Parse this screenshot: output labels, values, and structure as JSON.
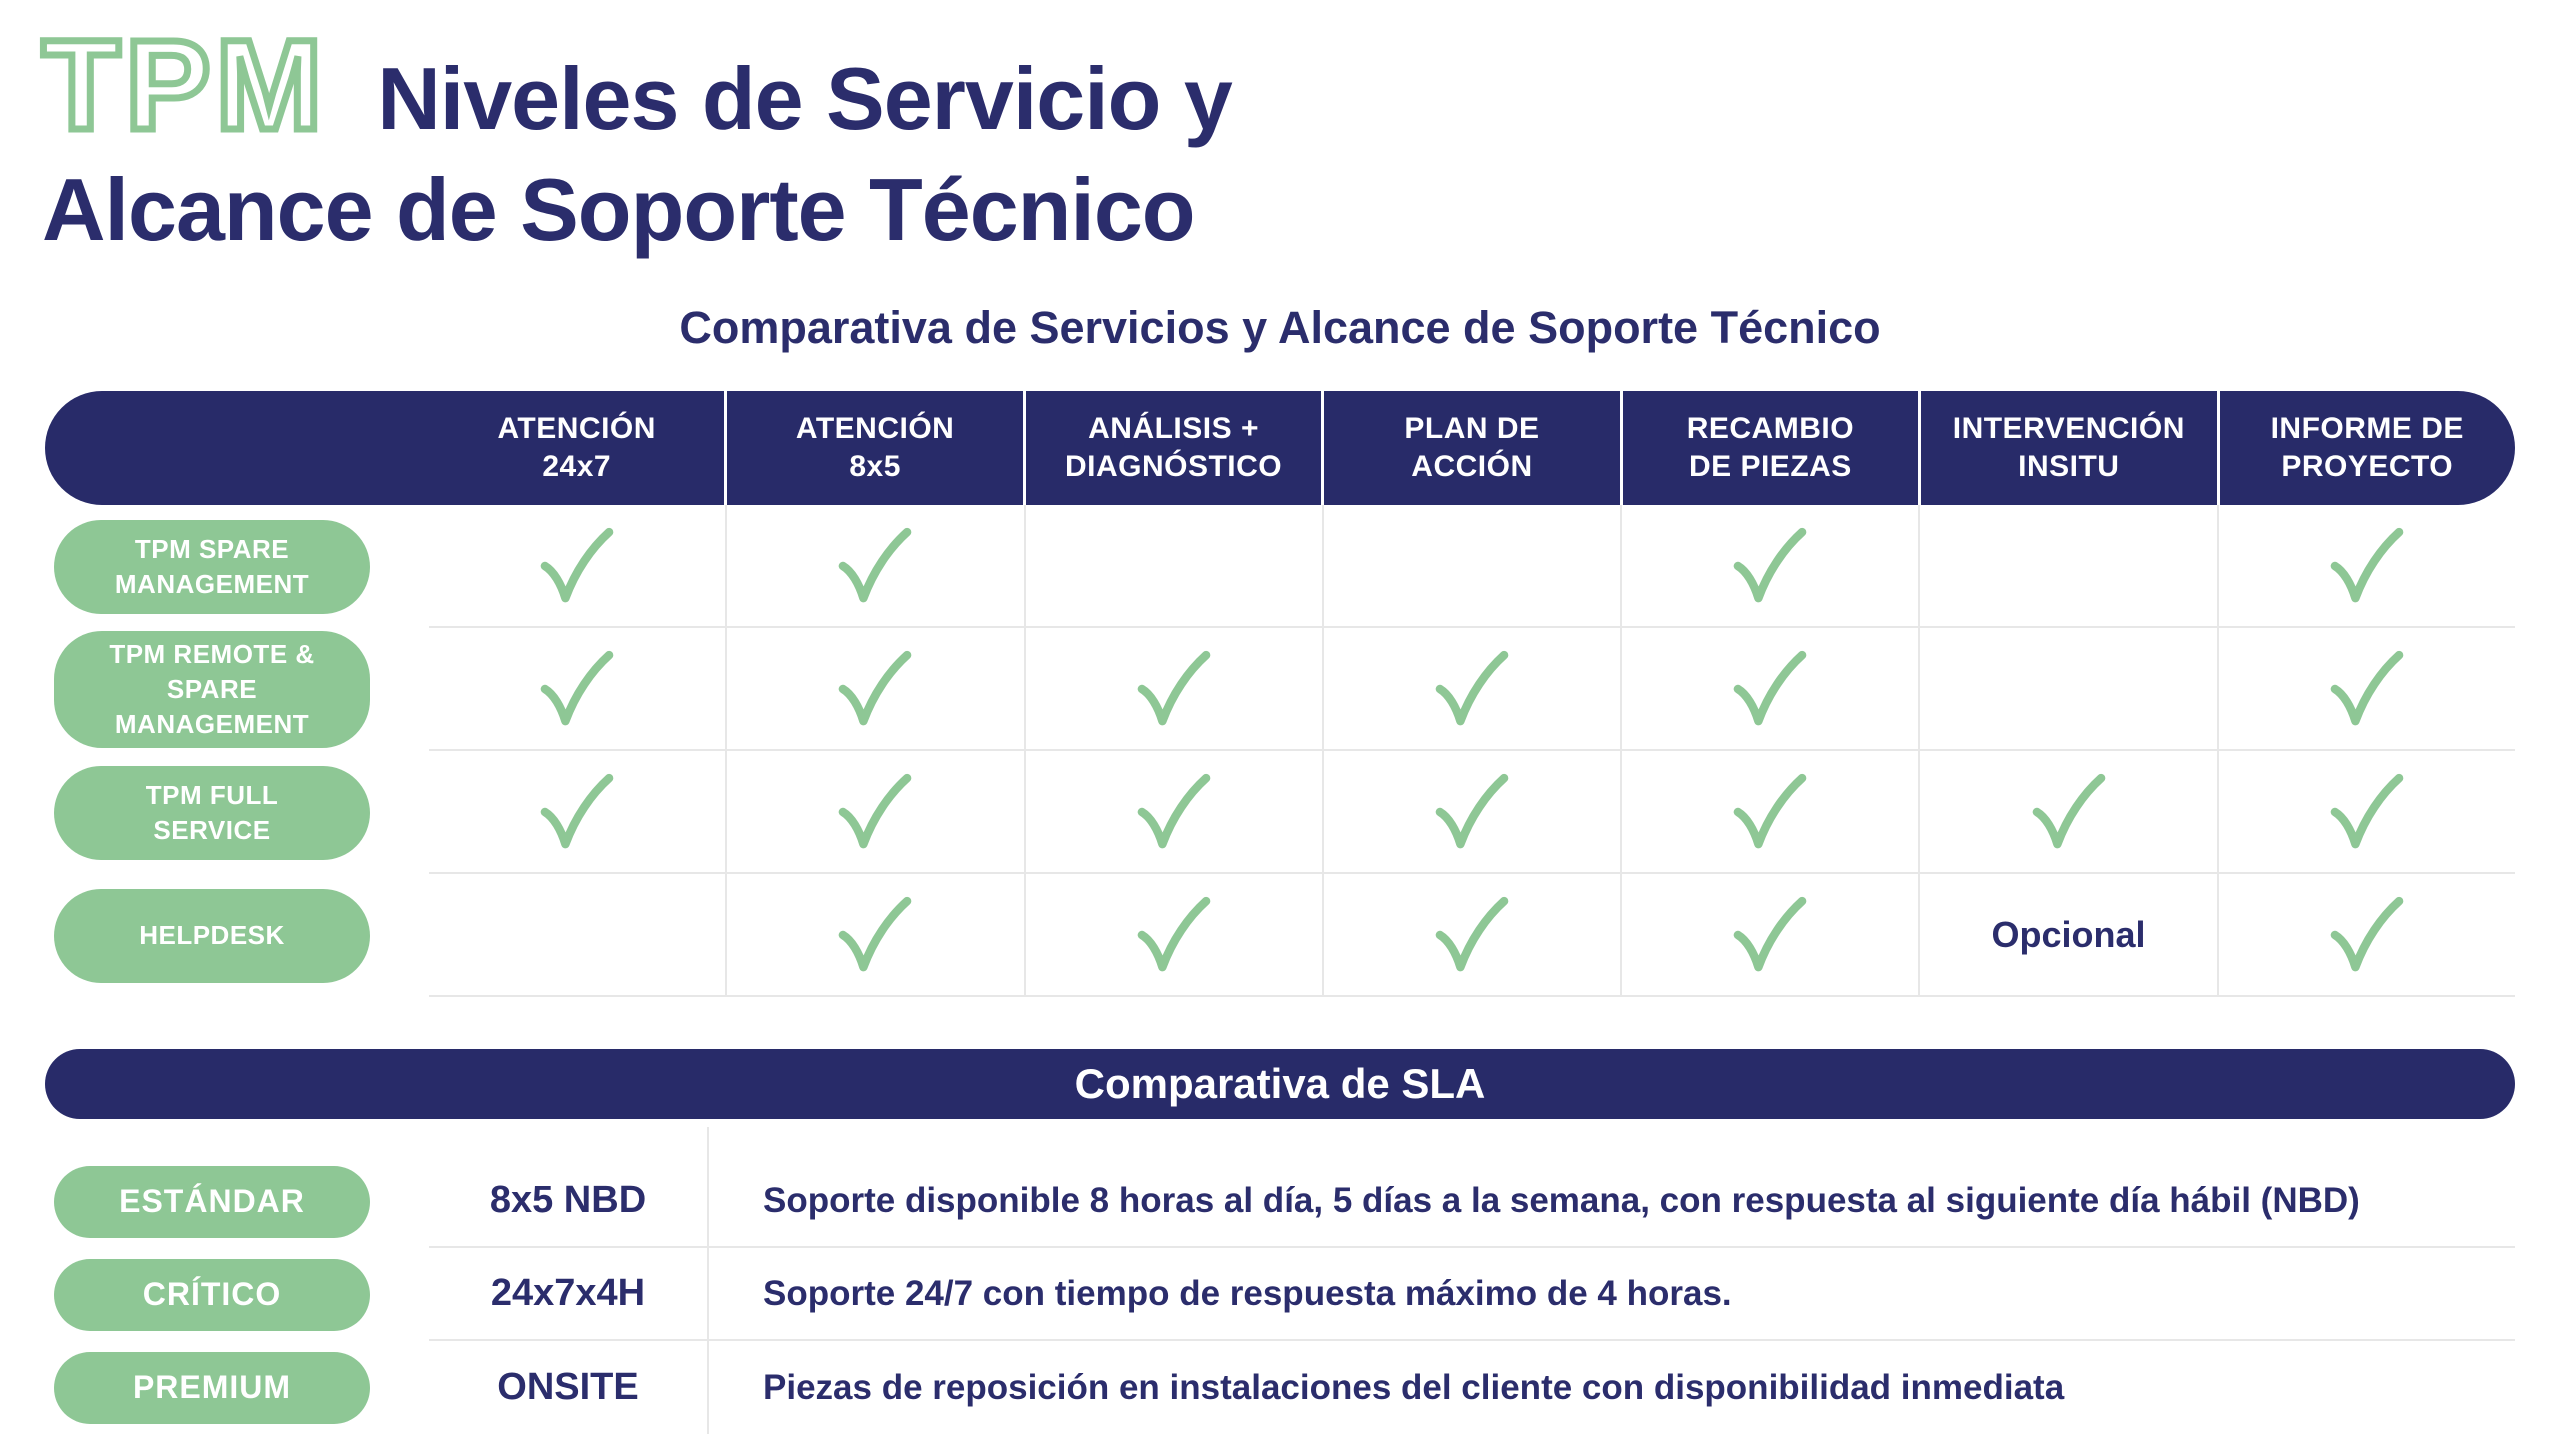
{
  "page": {
    "logo": "TPM",
    "title_line1": "Niveles de Servicio y",
    "title_line2": "Alcance de Soporte Técnico",
    "subtitle": "Comparativa de Servicios y Alcance de Soporte Técnico"
  },
  "colors": {
    "navy": "#282b69",
    "green": "#8ec795",
    "divider": "#e7e7e7",
    "text_on_dark": "#ffffff"
  },
  "services_table": {
    "columns": [
      "ATENCIÓN\n24x7",
      "ATENCIÓN\n8x5",
      "ANÁLISIS +\nDIAGNÓSTICO",
      "PLAN DE\nACCIÓN",
      "RECAMBIO\nDE PIEZAS",
      "INTERVENCIÓN\nINSITU",
      "INFORME DE\nPROYECTO"
    ],
    "rows": [
      {
        "label": "TPM SPARE\nMANAGEMENT",
        "cells": [
          "check",
          "check",
          "",
          "",
          "check",
          "",
          "check"
        ]
      },
      {
        "label": "TPM REMOTE & SPARE\nMANAGEMENT",
        "cells": [
          "check",
          "check",
          "check",
          "check",
          "check",
          "",
          "check"
        ]
      },
      {
        "label": "TPM FULL\nSERVICE",
        "cells": [
          "check",
          "check",
          "check",
          "check",
          "check",
          "check",
          "check"
        ]
      },
      {
        "label": "HELPDESK",
        "cells": [
          "",
          "check",
          "check",
          "check",
          "check",
          "Opcional",
          "check"
        ]
      }
    ]
  },
  "sla_table": {
    "header": "Comparativa de SLA",
    "rows": [
      {
        "tier": "ESTÁNDAR",
        "sla": "8x5 NBD",
        "description": "Soporte disponible 8 horas al día, 5 días a la semana, con respuesta al siguiente día hábil (NBD)"
      },
      {
        "tier": "CRÍTICO",
        "sla": "24x7x4H",
        "description": "Soporte 24/7 con tiempo de respuesta máximo de 4 horas."
      },
      {
        "tier": "PREMIUM",
        "sla": "ONSITE",
        "description": "Piezas de reposición en instalaciones del cliente con disponibilidad inmediata"
      }
    ]
  },
  "icons": {
    "check": "green-handdrawn-checkmark"
  }
}
